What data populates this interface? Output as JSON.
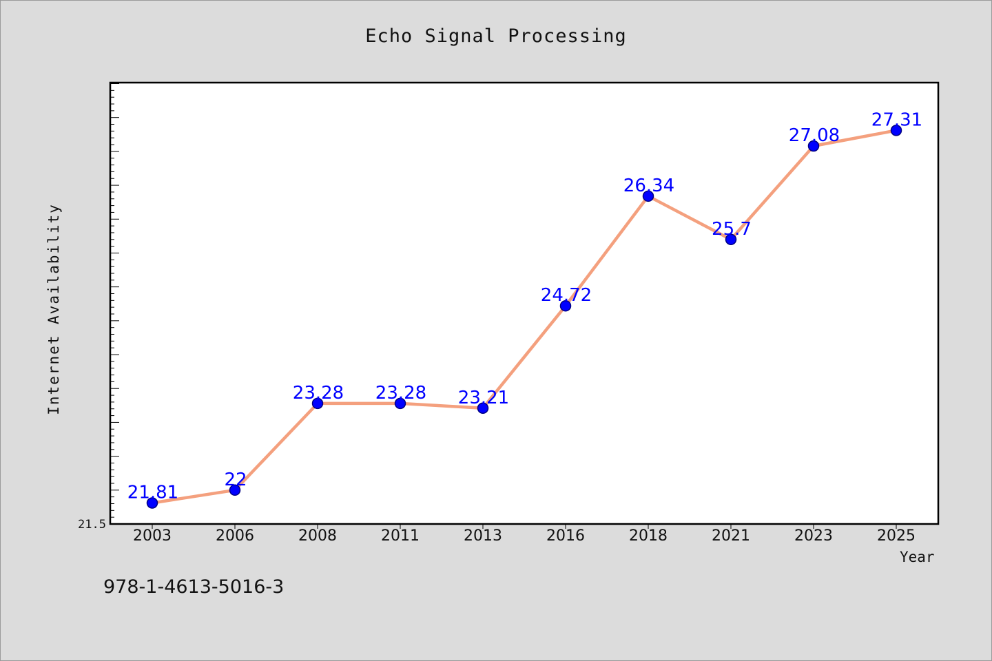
{
  "chart_data": {
    "type": "line",
    "title": "Echo Signal Processing",
    "xlabel": "Year",
    "ylabel": "Internet Availability",
    "categories": [
      "2003",
      "2006",
      "2008",
      "2011",
      "2013",
      "2016",
      "2018",
      "2021",
      "2023",
      "2025"
    ],
    "series": [
      {
        "values": [
          21.81,
          22,
          23.28,
          23.28,
          23.21,
          24.72,
          26.34,
          25.7,
          27.08,
          27.31
        ],
        "data_labels": [
          "21.81",
          "22",
          "23.28",
          "23.28",
          "23.21",
          "24.72",
          "26.34",
          "25.7",
          "27.08",
          "27.31"
        ],
        "line_color": "#f4a07e",
        "marker_color": "#0000ff",
        "label_color": "#0000ff"
      }
    ],
    "ylim": [
      21.5,
      28.0
    ],
    "y_tick_labels": [
      "21.5"
    ],
    "grid": false,
    "legend": "none"
  },
  "footer": {
    "isbn": "978-1-4613-5016-3"
  }
}
